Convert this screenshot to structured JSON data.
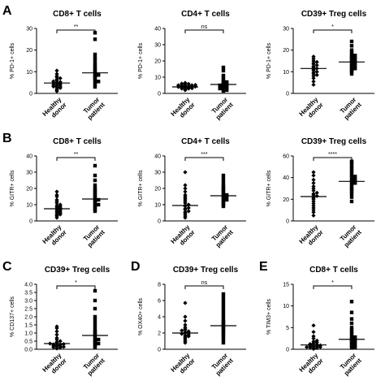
{
  "row_letters": [
    "A",
    "B",
    "C",
    "D",
    "E"
  ],
  "chart_data": [
    {
      "id": "A1",
      "row": 0,
      "col": 0,
      "letter": "A",
      "type": "scatter",
      "title": "CD8+ T cells",
      "ylabel": "% PD-1+ cells",
      "ylim": [
        0,
        30
      ],
      "yticks": [
        0,
        10,
        20,
        30
      ],
      "categories": [
        "Healthy donor",
        "Tumor patient"
      ],
      "significance": "**",
      "groups": [
        {
          "name": "Healthy donor",
          "mean": 4.8,
          "values": [
            1.0,
            1.5,
            2.0,
            2.5,
            2.8,
            3.0,
            3.2,
            3.5,
            3.8,
            4.0,
            4.2,
            4.5,
            4.8,
            5.0,
            5.3,
            5.6,
            6.0,
            6.5,
            7.0,
            7.5,
            8.0,
            9.0,
            10.5
          ]
        },
        {
          "name": "Tumor patient",
          "mean": 9.5,
          "values": [
            3.0,
            4.0,
            5.0,
            5.5,
            6.0,
            7.0,
            7.5,
            8.0,
            8.5,
            9.0,
            9.5,
            10.5,
            11.0,
            12.0,
            13.0,
            14.0,
            15.5,
            16.5,
            18.0,
            25.0,
            28.0
          ]
        }
      ]
    },
    {
      "id": "A2",
      "row": 0,
      "col": 1,
      "letter": "",
      "type": "scatter",
      "title": "CD4+ T cells",
      "ylabel": "% PD-1+ cells",
      "ylim": [
        0,
        40
      ],
      "yticks": [
        0,
        10,
        20,
        30,
        40
      ],
      "categories": [
        "Healthy donor",
        "Tumor patient"
      ],
      "significance": "ns",
      "groups": [
        {
          "name": "Healthy donor",
          "mean": 4.0,
          "values": [
            2.0,
            2.5,
            3.0,
            3.0,
            3.2,
            3.5,
            3.5,
            3.8,
            4.0,
            4.0,
            4.2,
            4.5,
            4.5,
            4.8,
            5.0,
            5.0,
            5.2,
            5.5,
            5.8,
            6.0,
            6.5
          ]
        },
        {
          "name": "Tumor patient",
          "mean": 5.5,
          "values": [
            1.5,
            2.0,
            2.5,
            3.0,
            3.0,
            3.5,
            4.0,
            4.0,
            4.5,
            5.0,
            5.0,
            5.5,
            6.0,
            6.5,
            7.0,
            7.5,
            8.5,
            10.0,
            11.0,
            14.0,
            16.0
          ]
        }
      ]
    },
    {
      "id": "A3",
      "row": 0,
      "col": 2,
      "letter": "",
      "type": "scatter",
      "title": "CD39+ Treg cells",
      "ylabel": "% PD-1+ cells",
      "ylim": [
        0,
        30
      ],
      "yticks": [
        0,
        10,
        20,
        30
      ],
      "categories": [
        "Healthy donor",
        "Tumor patient"
      ],
      "significance": "*",
      "groups": [
        {
          "name": "Healthy donor",
          "mean": 11.5,
          "values": [
            4.0,
            5.5,
            7.0,
            8.0,
            8.5,
            9.0,
            9.5,
            10.0,
            10.5,
            11.0,
            11.5,
            12.0,
            12.5,
            13.0,
            13.5,
            14.0,
            14.5,
            15.0,
            16.0,
            17.0
          ]
        },
        {
          "name": "Tumor patient",
          "mean": 14.5,
          "values": [
            9.0,
            10.0,
            10.5,
            11.0,
            11.5,
            12.0,
            12.5,
            13.0,
            13.5,
            14.0,
            14.5,
            15.0,
            15.5,
            16.0,
            16.5,
            17.0,
            17.5,
            18.0,
            19.0,
            20.0,
            22.0,
            24.0
          ]
        }
      ]
    },
    {
      "id": "B1",
      "row": 1,
      "col": 0,
      "letter": "B",
      "type": "scatter",
      "title": "CD8+ T cells",
      "ylabel": "% GITR+ cells",
      "ylim": [
        0,
        40
      ],
      "yticks": [
        0,
        10,
        20,
        30,
        40
      ],
      "categories": [
        "Healthy donor",
        "Tumor patient"
      ],
      "significance": "**",
      "groups": [
        {
          "name": "Healthy donor",
          "mean": 7.5,
          "values": [
            2.0,
            3.0,
            3.5,
            4.0,
            4.5,
            5.0,
            5.5,
            6.0,
            6.5,
            7.0,
            7.5,
            8.0,
            8.5,
            9.0,
            9.5,
            10.0,
            11.0,
            12.0,
            13.0,
            15.0,
            16.0,
            18.0
          ]
        },
        {
          "name": "Tumor patient",
          "mean": 13.5,
          "values": [
            6.0,
            7.0,
            8.0,
            9.0,
            9.5,
            10.0,
            11.0,
            12.0,
            12.5,
            13.0,
            14.0,
            15.0,
            16.0,
            17.0,
            18.0,
            19.0,
            20.0,
            22.0,
            25.0,
            28.0,
            34.0
          ]
        }
      ]
    },
    {
      "id": "B2",
      "row": 1,
      "col": 1,
      "letter": "",
      "type": "scatter",
      "title": "CD4+ T cells",
      "ylabel": "% GITR+ cells",
      "ylim": [
        0,
        40
      ],
      "yticks": [
        0,
        10,
        20,
        30,
        40
      ],
      "categories": [
        "Healthy donor",
        "Tumor patient"
      ],
      "significance": "***",
      "groups": [
        {
          "name": "Healthy donor",
          "mean": 9.5,
          "values": [
            2.0,
            3.0,
            4.0,
            5.0,
            5.5,
            6.0,
            7.0,
            7.5,
            8.0,
            9.0,
            9.5,
            10.0,
            11.0,
            12.0,
            13.0,
            14.0,
            15.0,
            16.0,
            18.0,
            20.0,
            22.0,
            30.0
          ]
        },
        {
          "name": "Tumor patient",
          "mean": 15.5,
          "values": [
            9.0,
            10.0,
            11.0,
            12.0,
            12.5,
            13.0,
            14.0,
            14.5,
            15.0,
            15.5,
            16.0,
            17.0,
            18.0,
            19.0,
            20.0,
            21.0,
            22.0,
            24.0,
            26.0,
            28.0
          ]
        }
      ]
    },
    {
      "id": "B3",
      "row": 1,
      "col": 2,
      "letter": "",
      "type": "scatter",
      "title": "CD39+ Treg cells",
      "ylabel": "% GITR+ cells",
      "ylim": [
        0,
        60
      ],
      "yticks": [
        0,
        20,
        40,
        60
      ],
      "categories": [
        "Healthy donor",
        "Tumor patient"
      ],
      "significance": "****",
      "groups": [
        {
          "name": "Healthy donor",
          "mean": 22.5,
          "values": [
            5.0,
            8.0,
            10.0,
            12.0,
            14.0,
            16.0,
            18.0,
            20.0,
            21.0,
            22.0,
            23.0,
            24.0,
            25.0,
            26.0,
            28.0,
            30.0,
            32.0,
            35.0,
            38.0,
            42.0,
            45.0
          ]
        },
        {
          "name": "Tumor patient",
          "mean": 36.5,
          "values": [
            18.0,
            22.0,
            25.0,
            27.0,
            29.0,
            30.0,
            32.0,
            34.0,
            35.0,
            36.0,
            37.0,
            38.0,
            40.0,
            41.0,
            42.0,
            44.0,
            46.0,
            48.0,
            50.0,
            52.0,
            54.0,
            55.0
          ]
        }
      ]
    },
    {
      "id": "C",
      "row": 2,
      "col": 0,
      "letter": "C",
      "type": "scatter",
      "title": "CD39+ Treg cells",
      "ylabel": "% CD137+ cells",
      "ylim": [
        0,
        4
      ],
      "yticks": [
        "0.0",
        "0.5",
        "1.0",
        "1.5",
        "2.0",
        "2.5",
        "3.0",
        "3.5",
        "4.0"
      ],
      "categories": [
        "Healthy donor",
        "Tumor patient"
      ],
      "significance": "*",
      "groups": [
        {
          "name": "Healthy donor",
          "mean": 0.35,
          "values": [
            0.05,
            0.1,
            0.12,
            0.15,
            0.18,
            0.2,
            0.22,
            0.25,
            0.28,
            0.3,
            0.32,
            0.35,
            0.4,
            0.45,
            0.5,
            0.6,
            0.7,
            0.9,
            1.1,
            1.3,
            1.4
          ]
        },
        {
          "name": "Tumor patient",
          "mean": 0.85,
          "values": [
            0.1,
            0.2,
            0.3,
            0.35,
            0.4,
            0.5,
            0.55,
            0.6,
            0.7,
            0.8,
            0.9,
            1.0,
            1.1,
            1.2,
            1.4,
            1.6,
            1.8,
            2.0,
            2.5,
            3.0,
            3.6
          ]
        }
      ]
    },
    {
      "id": "D",
      "row": 2,
      "col": 1,
      "letter": "D",
      "type": "scatter",
      "title": "CD39+ Treg cells",
      "ylabel": "% OX40+ cells",
      "ylim": [
        0,
        8
      ],
      "yticks": [
        0,
        2,
        4,
        6,
        8
      ],
      "categories": [
        "Healthy donor",
        "Tumor patient"
      ],
      "significance": "ns",
      "groups": [
        {
          "name": "Healthy donor",
          "mean": 2.0,
          "values": [
            0.8,
            1.0,
            1.2,
            1.4,
            1.5,
            1.6,
            1.7,
            1.8,
            1.9,
            2.0,
            2.0,
            2.1,
            2.2,
            2.3,
            2.4,
            2.5,
            2.7,
            3.0,
            3.5,
            4.0,
            5.7
          ]
        },
        {
          "name": "Tumor patient",
          "mean": 2.9,
          "values": [
            0.8,
            1.2,
            1.5,
            1.8,
            2.0,
            2.2,
            2.4,
            2.6,
            2.8,
            3.0,
            3.2,
            3.4,
            3.6,
            4.0,
            4.4,
            4.8,
            5.2,
            5.6,
            6.0,
            6.4,
            6.8
          ]
        }
      ]
    },
    {
      "id": "E",
      "row": 2,
      "col": 2,
      "letter": "E",
      "type": "scatter",
      "title": "CD8+ T cells",
      "ylabel": "% TIM3+ cells",
      "ylim": [
        0,
        15
      ],
      "yticks": [
        0,
        5,
        10,
        15
      ],
      "categories": [
        "Healthy donor",
        "Tumor patient"
      ],
      "significance": "*",
      "groups": [
        {
          "name": "Healthy donor",
          "mean": 1.0,
          "values": [
            0.1,
            0.2,
            0.3,
            0.4,
            0.5,
            0.5,
            0.6,
            0.7,
            0.8,
            0.9,
            1.0,
            1.1,
            1.2,
            1.4,
            1.6,
            1.8,
            2.0,
            2.5,
            3.0,
            4.0,
            5.5
          ]
        },
        {
          "name": "Tumor patient",
          "mean": 2.3,
          "values": [
            0.3,
            0.5,
            0.8,
            1.0,
            1.2,
            1.5,
            1.8,
            2.0,
            2.2,
            2.5,
            2.8,
            3.0,
            3.5,
            4.0,
            4.5,
            5.0,
            6.0,
            7.0,
            8.5,
            11.0
          ]
        }
      ]
    }
  ]
}
